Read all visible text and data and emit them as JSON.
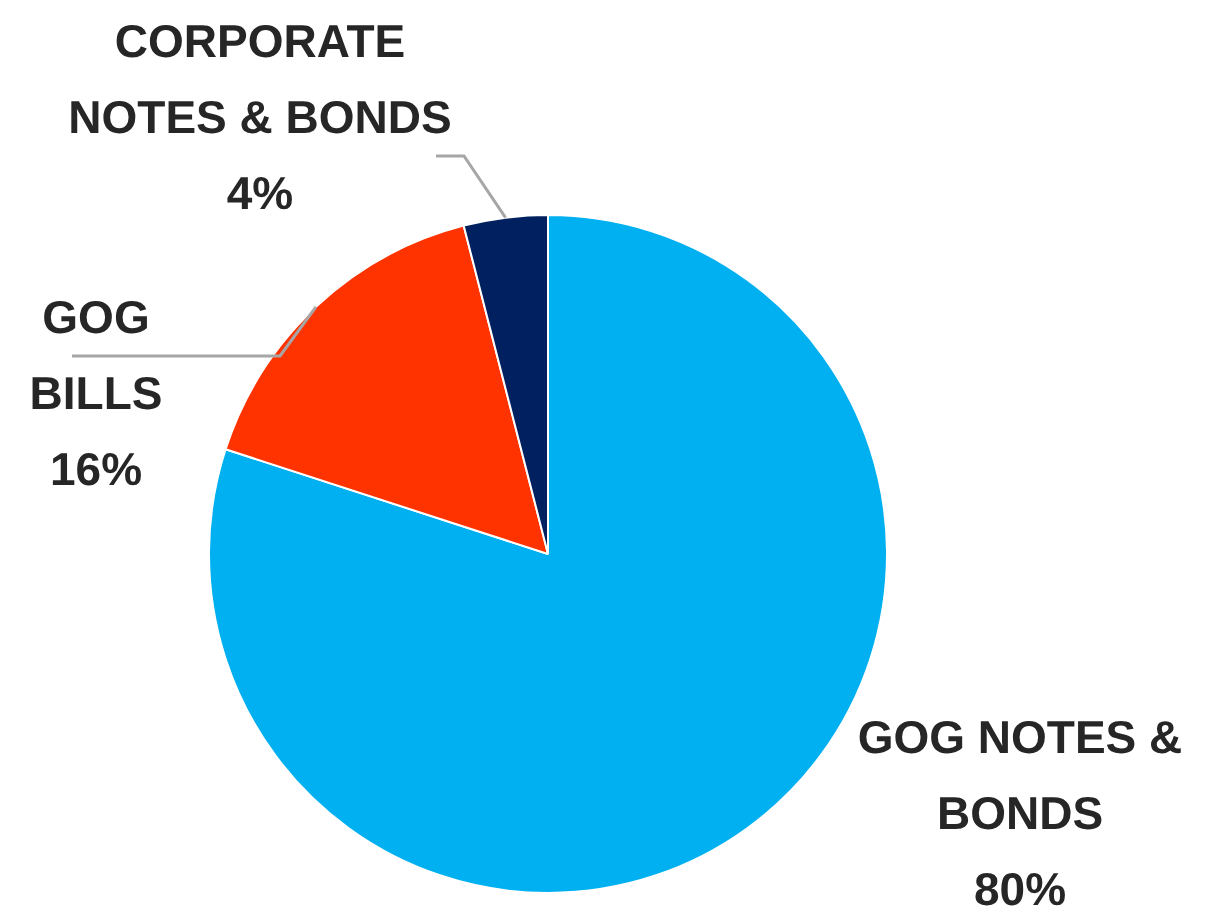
{
  "chart_data": {
    "type": "pie",
    "categories": [
      "GOG NOTES & BONDS",
      "GOG BILLS",
      "CORPORATE NOTES & BONDS"
    ],
    "values": [
      80,
      16,
      4
    ],
    "colors": [
      "#00b0f0",
      "#ff3300",
      "#002060"
    ],
    "value_labels": [
      "80%",
      "16%",
      "4%"
    ],
    "legend": false
  }
}
